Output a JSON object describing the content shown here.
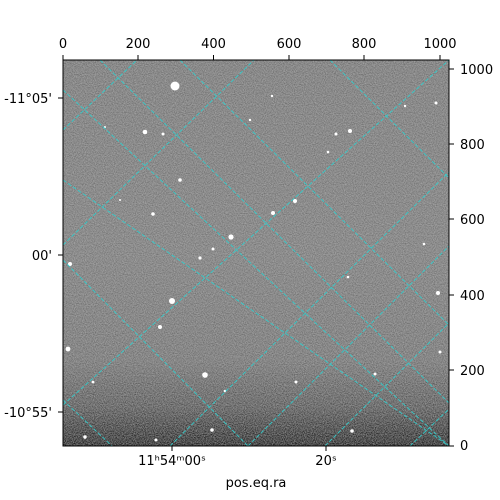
{
  "image": {
    "description_type": "astronomical-image-with-wcs-grid",
    "colormap": "grayscale",
    "grid_color": "#33cccc"
  },
  "axes": {
    "xlabel": "pos.eq.ra",
    "pixel_x_ticks": [
      "0",
      "200",
      "400",
      "600",
      "800",
      "1000"
    ],
    "pixel_y_ticks": [
      "0",
      "200",
      "400",
      "600",
      "800",
      "1000"
    ],
    "ra_ticks": [
      {
        "hours": "11",
        "minutes": "54",
        "seconds": "00",
        "text": "11ʰ54ᵐ00ˢ"
      },
      {
        "seconds": "20",
        "text": "20ˢ"
      }
    ],
    "dec_ticks": [
      "-11°05'",
      "00'",
      "-10°55'"
    ]
  },
  "chart_data": {
    "type": "heatmap",
    "title": "",
    "xlabel": "pos.eq.ra",
    "ylabel": "",
    "xlim": [
      0,
      1024
    ],
    "ylim": [
      0,
      1024
    ],
    "top_ticks": [
      0,
      200,
      400,
      600,
      800,
      1000
    ],
    "right_ticks": [
      0,
      200,
      400,
      600,
      800,
      1000
    ],
    "left_ticks": [
      "-11°05'",
      "00'",
      "-10°55'"
    ],
    "bottom_ticks": [
      "11ʰ54ᵐ00ˢ",
      "20ˢ"
    ]
  }
}
